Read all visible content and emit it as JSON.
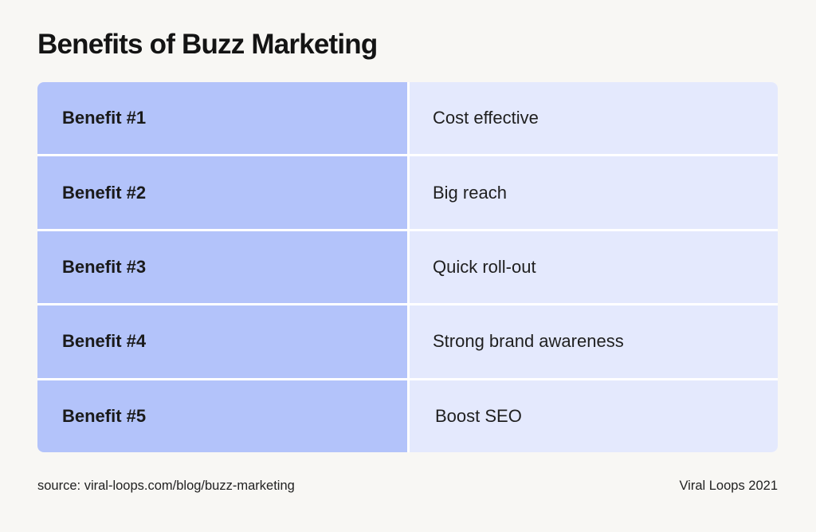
{
  "title": "Benefits of Buzz Marketing",
  "table": {
    "rows": [
      {
        "label": "Benefit #1",
        "value": "Cost effective"
      },
      {
        "label": "Benefit #2",
        "value": "Big reach"
      },
      {
        "label": "Benefit #3",
        "value": "Quick roll-out"
      },
      {
        "label": "Benefit #4",
        "value": "Strong brand awareness"
      },
      {
        "label": "Benefit #5",
        "value": "Boost SEO"
      }
    ]
  },
  "footer": {
    "source": "source: viral-loops.com/blog/buzz-marketing",
    "credit": "Viral Loops 2021"
  },
  "colors": {
    "background": "#f8f7f4",
    "label_cell": "#b3c3fa",
    "value_cell": "#e4e9fd",
    "divider": "#ffffff"
  }
}
